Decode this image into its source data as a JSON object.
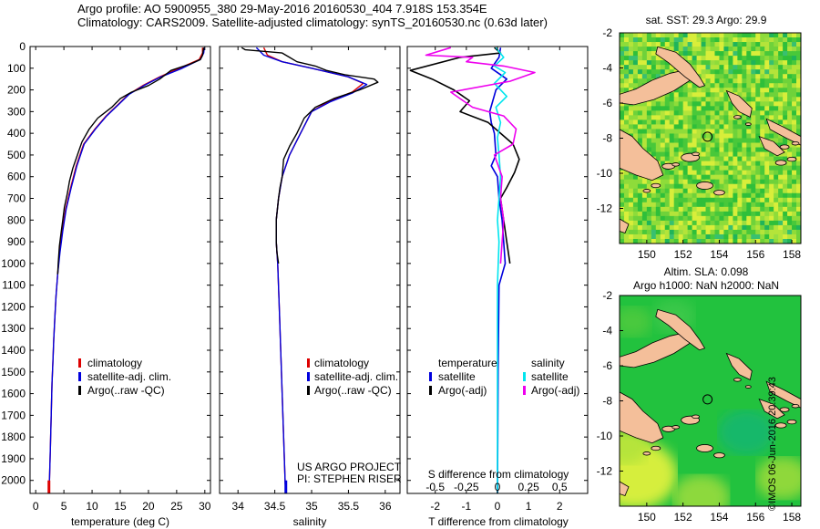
{
  "header": {
    "line1": "Argo profile: AO 5900955_380 29-May-2016 20160530_404 7.918S 153.354E",
    "line2": "Climatology: CARS2009. Satellite-adjusted climatology: synTS_20160530.nc (0.63d later)"
  },
  "credit": "©IMOS 06-Jun-2016 20:39:43",
  "colors": {
    "climatology": "#dd0000",
    "satellite": "#0000dd",
    "argo": "#000000",
    "salinity_satellite": "#00e5ee",
    "salinity_argo": "#ee00ee",
    "land": "#f4bf9a"
  },
  "chart_data": [
    {
      "type": "line",
      "xlabel": "temperature (deg C)",
      "xticks": [
        0,
        5,
        10,
        15,
        20,
        25,
        30
      ],
      "xlim": [
        -1,
        31
      ],
      "ylim": [
        0,
        2060
      ],
      "yticks": [
        0,
        100,
        200,
        300,
        400,
        500,
        600,
        700,
        800,
        900,
        1000,
        1100,
        1200,
        1300,
        1400,
        1500,
        1600,
        1700,
        1800,
        1900,
        2000
      ],
      "legend": [
        "climatology",
        "satellite-adj. clim.",
        "Argo(..raw -QC)"
      ],
      "series": [
        {
          "name": "climatology",
          "color": "#dd0000",
          "points": [
            [
              29.6,
              5
            ],
            [
              29.6,
              30
            ],
            [
              29,
              60
            ],
            [
              25.5,
              100
            ],
            [
              22,
              140
            ],
            [
              19,
              180
            ],
            [
              16.5,
              220
            ],
            [
              14.5,
              270
            ],
            [
              12.5,
              320
            ],
            [
              10.5,
              380
            ],
            [
              8.5,
              450
            ],
            [
              7.2,
              550
            ],
            [
              6.2,
              650
            ],
            [
              5.3,
              750
            ],
            [
              4.7,
              850
            ],
            [
              4.2,
              950
            ],
            [
              3.9,
              1050
            ],
            [
              3.6,
              1150
            ],
            [
              3.4,
              1250
            ],
            [
              3.2,
              1350
            ],
            [
              3.05,
              1450
            ],
            [
              2.9,
              1550
            ],
            [
              2.75,
              1700
            ],
            [
              2.6,
              1850
            ],
            [
              2.45,
              2000
            ],
            [
              2.35,
              2060
            ]
          ]
        },
        {
          "name": "satellite-adj. clim.",
          "color": "#0000dd",
          "points": [
            [
              29.9,
              5
            ],
            [
              29.8,
              30
            ],
            [
              29.2,
              60
            ],
            [
              26,
              100
            ],
            [
              22.2,
              140
            ],
            [
              19.2,
              180
            ],
            [
              16.6,
              220
            ],
            [
              14.6,
              270
            ],
            [
              12.6,
              320
            ],
            [
              10.6,
              380
            ],
            [
              8.6,
              450
            ],
            [
              7.3,
              550
            ],
            [
              6.3,
              650
            ],
            [
              5.4,
              750
            ],
            [
              4.8,
              850
            ],
            [
              4.3,
              950
            ],
            [
              3.9,
              1050
            ],
            [
              3.6,
              1150
            ],
            [
              3.4,
              1250
            ],
            [
              3.2,
              1350
            ],
            [
              3.05,
              1450
            ],
            [
              2.9,
              1550
            ],
            [
              2.75,
              1700
            ],
            [
              2.6,
              1850
            ],
            [
              2.45,
              2000
            ],
            [
              2.35,
              2060
            ]
          ]
        },
        {
          "name": "Argo(..raw -QC)",
          "color": "#000000",
          "points": [
            [
              29.8,
              5
            ],
            [
              29.7,
              20
            ],
            [
              29.6,
              40
            ],
            [
              29.2,
              60
            ],
            [
              27.5,
              80
            ],
            [
              24,
              110
            ],
            [
              22,
              150
            ],
            [
              20,
              180
            ],
            [
              17,
              210
            ],
            [
              15,
              240
            ],
            [
              13.5,
              280
            ],
            [
              11,
              330
            ],
            [
              9.5,
              380
            ],
            [
              8.2,
              440
            ],
            [
              7.4,
              500
            ],
            [
              6.6,
              560
            ],
            [
              6,
              620
            ],
            [
              5.6,
              680
            ],
            [
              5.1,
              740
            ],
            [
              4.8,
              800
            ],
            [
              4.5,
              860
            ],
            [
              4.2,
              920
            ],
            [
              4,
              1000
            ],
            [
              3.9,
              1050
            ]
          ]
        }
      ]
    },
    {
      "type": "line",
      "xlabel": "salinity",
      "xticks": [
        34,
        34.5,
        35,
        35.5,
        36
      ],
      "xlim": [
        33.75,
        36.2
      ],
      "ylim": [
        0,
        2060
      ],
      "legend": [
        "climatology",
        "satellite-adj. clim.",
        "Argo(..raw -QC)"
      ],
      "annotation": [
        "US ARGO PROJECT",
        "PI: STEPHEN RISER"
      ],
      "series": [
        {
          "name": "climatology",
          "color": "#dd0000",
          "points": [
            [
              34.35,
              5
            ],
            [
              34.4,
              40
            ],
            [
              34.6,
              70
            ],
            [
              35,
              100
            ],
            [
              35.5,
              140
            ],
            [
              35.7,
              170
            ],
            [
              35.55,
              210
            ],
            [
              35.25,
              250
            ],
            [
              35,
              300
            ],
            [
              34.85,
              400
            ],
            [
              34.7,
              500
            ],
            [
              34.6,
              600
            ],
            [
              34.55,
              700
            ],
            [
              34.52,
              800
            ],
            [
              34.52,
              900
            ],
            [
              34.54,
              1000
            ],
            [
              34.56,
              1200
            ],
            [
              34.58,
              1400
            ],
            [
              34.6,
              1600
            ],
            [
              34.62,
              1800
            ],
            [
              34.64,
              2000
            ],
            [
              34.65,
              2060
            ]
          ]
        },
        {
          "name": "satellite-adj. clim.",
          "color": "#0000dd",
          "points": [
            [
              34.25,
              5
            ],
            [
              34.35,
              40
            ],
            [
              34.6,
              70
            ],
            [
              35,
              100
            ],
            [
              35.5,
              140
            ],
            [
              35.75,
              175
            ],
            [
              35.55,
              215
            ],
            [
              35.25,
              255
            ],
            [
              35,
              300
            ],
            [
              34.85,
              400
            ],
            [
              34.7,
              500
            ],
            [
              34.6,
              600
            ],
            [
              34.55,
              700
            ],
            [
              34.52,
              800
            ],
            [
              34.52,
              900
            ],
            [
              34.54,
              1000
            ],
            [
              34.56,
              1200
            ],
            [
              34.58,
              1400
            ],
            [
              34.6,
              1600
            ],
            [
              34.62,
              1800
            ],
            [
              34.64,
              2000
            ],
            [
              34.65,
              2060
            ]
          ]
        },
        {
          "name": "Argo(..raw -QC)",
          "color": "#000000",
          "points": [
            [
              34.05,
              5
            ],
            [
              34.1,
              15
            ],
            [
              34.6,
              30
            ],
            [
              34.7,
              50
            ],
            [
              34.8,
              70
            ],
            [
              35.05,
              90
            ],
            [
              35.2,
              110
            ],
            [
              35.45,
              130
            ],
            [
              35.85,
              150
            ],
            [
              35.9,
              165
            ],
            [
              35.65,
              200
            ],
            [
              35.3,
              240
            ],
            [
              35.05,
              280
            ],
            [
              34.9,
              330
            ],
            [
              34.8,
              400
            ],
            [
              34.7,
              460
            ],
            [
              34.62,
              520
            ],
            [
              34.6,
              600
            ],
            [
              34.57,
              650
            ],
            [
              34.55,
              700
            ],
            [
              34.52,
              800
            ],
            [
              34.52,
              900
            ],
            [
              34.53,
              950
            ],
            [
              34.55,
              1000
            ]
          ]
        }
      ]
    },
    {
      "type": "line",
      "xlabel": "T difference from climatology",
      "xticks": [
        -2,
        -1,
        0,
        1,
        2
      ],
      "xlim": [
        -2.9,
        2.9
      ],
      "secondary_xlabel": "S difference from climatology",
      "secondary_xticks": [
        "-0.5",
        "-0.25",
        "0",
        "0.25",
        "0.5"
      ],
      "ylim": [
        0,
        2060
      ],
      "legend": {
        "temperature": [
          "satellite",
          "Argo(-adj)"
        ],
        "salinity": [
          "satellite",
          "Argo(-adj)"
        ]
      },
      "legend_headers": [
        "temperature",
        "salinity"
      ],
      "series": [
        {
          "name": "temperature satellite",
          "color": "#0000dd",
          "points": [
            [
              0.1,
              5
            ],
            [
              0.05,
              50
            ],
            [
              -0.2,
              100
            ],
            [
              0.3,
              150
            ],
            [
              -0.05,
              200
            ],
            [
              -0.25,
              300
            ],
            [
              -0.2,
              350
            ],
            [
              -0.1,
              400
            ],
            [
              -0.05,
              500
            ],
            [
              -0.2,
              550
            ],
            [
              0,
              600
            ],
            [
              0.05,
              700
            ],
            [
              0.15,
              800
            ],
            [
              0.2,
              900
            ],
            [
              0.25,
              1000
            ],
            [
              0.05,
              1100
            ],
            [
              0.02,
              1500
            ],
            [
              0,
              2060
            ]
          ]
        },
        {
          "name": "temperature Argo(-adj)",
          "color": "#000000",
          "points": [
            [
              -0.1,
              5
            ],
            [
              0.1,
              30
            ],
            [
              -1.2,
              50
            ],
            [
              -2.8,
              110
            ],
            [
              -2.1,
              150
            ],
            [
              -1.4,
              200
            ],
            [
              -0.9,
              250
            ],
            [
              -1.2,
              300
            ],
            [
              -0.3,
              350
            ],
            [
              0.1,
              400
            ],
            [
              0.5,
              450
            ],
            [
              0.7,
              520
            ],
            [
              0.55,
              580
            ],
            [
              0.3,
              650
            ],
            [
              0.1,
              700
            ],
            [
              0.2,
              800
            ],
            [
              0.3,
              900
            ],
            [
              0.4,
              1000
            ]
          ]
        },
        {
          "name": "salinity satellite",
          "color": "#00e5ee",
          "points": [
            [
              -0.05,
              5
            ],
            [
              0.2,
              50
            ],
            [
              -0.1,
              90
            ],
            [
              0.25,
              120
            ],
            [
              -0.1,
              170
            ],
            [
              0.3,
              230
            ],
            [
              -0.05,
              280
            ],
            [
              0.1,
              350
            ],
            [
              0,
              420
            ],
            [
              0.05,
              500
            ],
            [
              0.1,
              600
            ],
            [
              0.05,
              700
            ],
            [
              0,
              800
            ],
            [
              0.05,
              900
            ],
            [
              0,
              1100
            ],
            [
              0,
              2060
            ]
          ]
        },
        {
          "name": "salinity Argo(-adj)",
          "color": "#ee00ee",
          "points": [
            [
              -1.5,
              5
            ],
            [
              -2.3,
              40
            ],
            [
              -0.8,
              50
            ],
            [
              -1.0,
              70
            ],
            [
              0.2,
              90
            ],
            [
              1.2,
              120
            ],
            [
              0.4,
              160
            ],
            [
              -1.5,
              210
            ],
            [
              -1.2,
              240
            ],
            [
              -0.8,
              280
            ],
            [
              0.2,
              320
            ],
            [
              0.6,
              380
            ],
            [
              0.5,
              450
            ],
            [
              -0.1,
              500
            ],
            [
              0.15,
              600
            ],
            [
              0.1,
              700
            ],
            [
              0.2,
              800
            ],
            [
              0.15,
              900
            ],
            [
              0.1,
              1000
            ]
          ]
        }
      ]
    },
    {
      "type": "heatmap",
      "title": "sat. SST: 29.3 Argo: 29.9",
      "xticks": [
        150,
        152,
        154,
        156,
        158
      ],
      "yticks": [
        -2,
        -4,
        -6,
        -8,
        -10,
        -12
      ],
      "xlim": [
        148.5,
        158.5
      ],
      "ylim": [
        -14,
        -2
      ],
      "marker": [
        153.354,
        -7.918
      ]
    },
    {
      "type": "heatmap",
      "title": "Altim. SLA: 0.098",
      "subtitle": "Argo h1000: NaN h2000: NaN",
      "xticks": [
        150,
        152,
        154,
        156,
        158
      ],
      "yticks": [
        -2,
        -4,
        -6,
        -8,
        -10,
        -12
      ],
      "xlim": [
        148.5,
        158.5
      ],
      "ylim": [
        -14,
        -2
      ],
      "marker": [
        153.354,
        -7.918
      ]
    }
  ]
}
